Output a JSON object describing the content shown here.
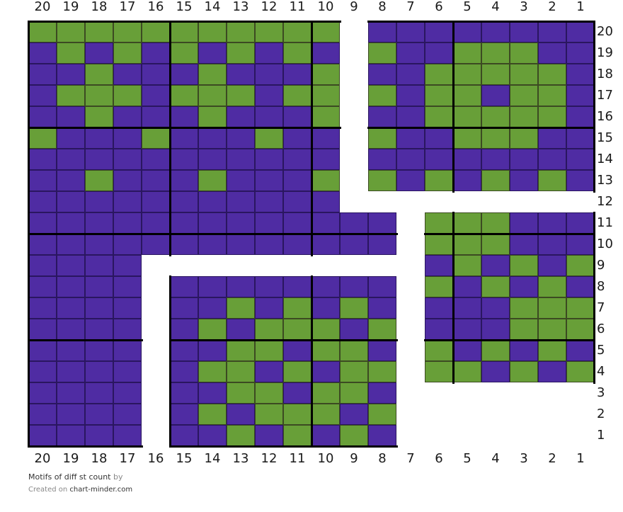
{
  "chart": {
    "title": "Motifs of diff st count",
    "by_label": "by",
    "created_on_label": "Created on",
    "site": "chart-minder.com",
    "columns": [
      20,
      19,
      18,
      17,
      16,
      15,
      14,
      13,
      12,
      11,
      10,
      9,
      8,
      7,
      6,
      5,
      4,
      3,
      2,
      1
    ],
    "rows": [
      20,
      19,
      18,
      17,
      16,
      15,
      14,
      13,
      12,
      11,
      10,
      9,
      8,
      7,
      6,
      5,
      4,
      3,
      2,
      1
    ],
    "colors": {
      "G": "#689f38",
      "P": "#4f2ca3"
    },
    "legend": {
      "G": "green",
      "P": "purple"
    },
    "grid": [
      "GGGGGGGGGGG.PPPPPPPP",
      "PGPGPGPGPGP.GPPGGGPP",
      "PPGPPPGPPPG.PPGGGGGP",
      "PGGGPGGGPGG.GPGGPGGP",
      "PPGPPPGPPPG.PPGGGGGP",
      "GPPPGPPPGPP.GPPGGGPP",
      "PPPPPPPPPPP.PPPPPPPP",
      "PPGPPPGPPPG.GPGPGPGP",
      "PPPPPPPPPPP.........",
      "PPPPPPPPPPPPP.GGGPPP",
      "PPPPPPPPPPPPP.GGGPPP",
      "PPPP..........PGPGPG",
      "PPPP.PPPPPPPP.GPGPGP",
      "PPPP.PPGPGPGP.PPPGGG",
      "PPPP.PGPGGGPG.PPPGGG",
      "PPPP.PPGGPGGP.GPGPGP",
      "PPPP.PGGPGPGG.GGPGPG",
      "PPPP.PPGGPGGP.......",
      "PPPP.PGPGGGPG.......",
      "PPPP.PPGPGPGP......."
    ]
  }
}
